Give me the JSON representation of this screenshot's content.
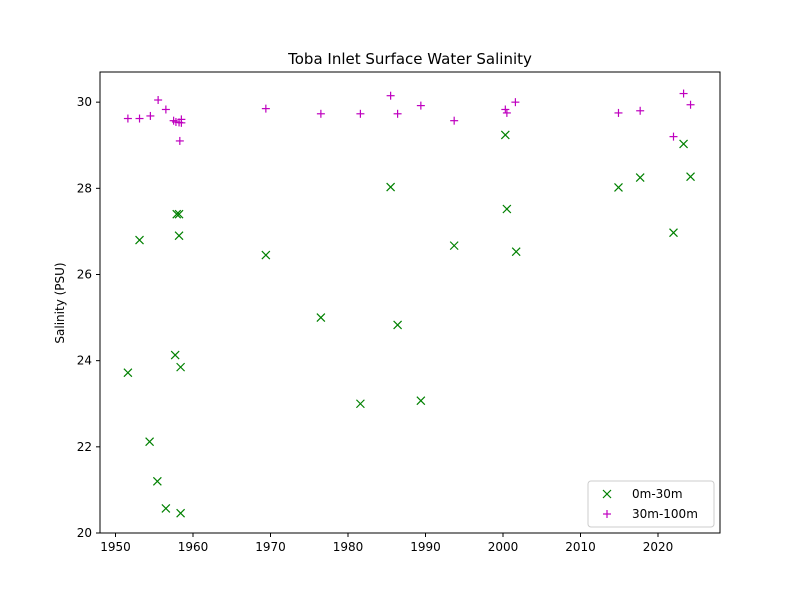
{
  "chart_data": {
    "type": "scatter",
    "title": "Toba Inlet Surface Water Salinity",
    "xlabel": "",
    "ylabel": "Salinity (PSU)",
    "xlim": [
      1948,
      2028
    ],
    "ylim": [
      20,
      30.7
    ],
    "x_ticks": [
      1950,
      1960,
      1970,
      1980,
      1990,
      2000,
      2010,
      2020
    ],
    "y_ticks": [
      20,
      22,
      24,
      26,
      28,
      30
    ],
    "grid": false,
    "legend_position": "lower-right",
    "series": [
      {
        "name": "0m-30m",
        "marker": "x",
        "color": "#008000",
        "points": [
          [
            1951.6,
            23.72
          ],
          [
            1953.1,
            26.8
          ],
          [
            1954.4,
            22.12
          ],
          [
            1955.4,
            21.2
          ],
          [
            1956.5,
            20.57
          ],
          [
            1957.7,
            24.13
          ],
          [
            1957.9,
            27.4
          ],
          [
            1958.2,
            27.4
          ],
          [
            1958.2,
            26.9
          ],
          [
            1958.4,
            23.85
          ],
          [
            1958.4,
            20.46
          ],
          [
            1969.4,
            26.45
          ],
          [
            1976.5,
            25.0
          ],
          [
            1981.6,
            23.0
          ],
          [
            1985.5,
            28.03
          ],
          [
            1986.4,
            24.83
          ],
          [
            1989.4,
            23.07
          ],
          [
            1993.7,
            26.67
          ],
          [
            2000.3,
            29.24
          ],
          [
            2000.5,
            27.52
          ],
          [
            2001.7,
            26.53
          ],
          [
            2014.9,
            28.02
          ],
          [
            2017.7,
            28.25
          ],
          [
            2022.0,
            26.97
          ],
          [
            2023.3,
            29.03
          ],
          [
            2024.2,
            28.27
          ]
        ]
      },
      {
        "name": "30m-100m",
        "marker": "+",
        "color": "#bf00bf",
        "points": [
          [
            1951.6,
            29.62
          ],
          [
            1953.1,
            29.62
          ],
          [
            1954.5,
            29.68
          ],
          [
            1955.5,
            30.05
          ],
          [
            1956.5,
            29.83
          ],
          [
            1957.5,
            29.57
          ],
          [
            1957.8,
            29.54
          ],
          [
            1958.2,
            29.53
          ],
          [
            1958.3,
            29.1
          ],
          [
            1958.5,
            29.6
          ],
          [
            1958.5,
            29.52
          ],
          [
            1969.4,
            29.85
          ],
          [
            1976.5,
            29.73
          ],
          [
            1981.6,
            29.73
          ],
          [
            1985.5,
            30.15
          ],
          [
            1986.4,
            29.73
          ],
          [
            1989.4,
            29.92
          ],
          [
            1993.7,
            29.57
          ],
          [
            2000.3,
            29.83
          ],
          [
            2000.5,
            29.75
          ],
          [
            2001.6,
            30.0
          ],
          [
            2014.9,
            29.75
          ],
          [
            2017.7,
            29.8
          ],
          [
            2022.0,
            29.2
          ],
          [
            2023.3,
            30.2
          ],
          [
            2024.2,
            29.94
          ]
        ]
      }
    ]
  }
}
